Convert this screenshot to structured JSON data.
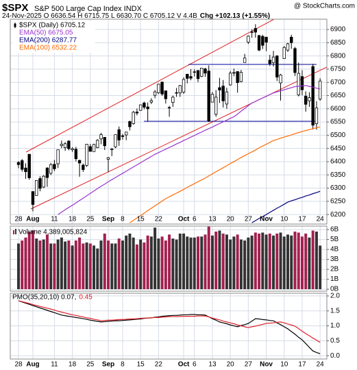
{
  "header": {
    "symbol": "$SPX",
    "title": "S&P 500 Large Cap Index INDX",
    "source": "@ StockCharts.com",
    "quote": "24-Nov-2025 O 6636.54 H 6715.75 L 6630.70 C 6705.12 V 4.4B",
    "change": "Chg +102.13 (+1.55%)"
  },
  "chart_data": [
    {
      "type": "candlestick",
      "grid": true,
      "grid_color": "#d5dbe6",
      "categories": [
        "28",
        null,
        null,
        null,
        "Aug",
        null,
        null,
        null,
        null,
        null,
        "11",
        null,
        null,
        null,
        null,
        "18",
        null,
        null,
        null,
        null,
        "25",
        null,
        null,
        null,
        null,
        "Sep",
        null,
        null,
        null,
        "8",
        null,
        null,
        null,
        null,
        "15",
        null,
        null,
        null,
        null,
        "22",
        null,
        null,
        null,
        null,
        null,
        null,
        "Oct",
        null,
        null,
        "6",
        null,
        null,
        null,
        null,
        "13",
        null,
        null,
        null,
        null,
        "20",
        null,
        null,
        null,
        null,
        "27",
        null,
        null,
        null,
        null,
        "Nov",
        null,
        null,
        null,
        null,
        "10",
        null,
        null,
        null,
        null,
        "17",
        null,
        null,
        null,
        null,
        "24"
      ],
      "ylim": [
        6164,
        6939
      ],
      "yticks": [
        6200,
        6250,
        6300,
        6350,
        6400,
        6450,
        6500,
        6550,
        6600,
        6650,
        6700,
        6750,
        6800,
        6850,
        6900
      ],
      "series": [
        {
          "name": "$SPX (Daily) 6705.12",
          "color": "#000000",
          "open": [
            6397,
            6404,
            6376,
            6428,
            6287,
            6272,
            6336,
            6304,
            6376,
            6356,
            6390,
            6392,
            6461,
            6453,
            6478,
            6445,
            6447,
            6405,
            6387,
            6386,
            6457,
            6438,
            6453,
            6486,
            6492,
            6409,
            6445,
            6456,
            6521,
            6498,
            6501,
            6552,
            6544,
            6588,
            6594,
            6622,
            6607,
            6625,
            6651,
            6661,
            6701,
            6668,
            6605,
            6624,
            6661,
            6660,
            6663,
            6731,
            6722,
            6740,
            6745,
            6723,
            6751,
            6743,
            6625,
            6579,
            6680,
            6686,
            6618,
            6690,
            6737,
            6741,
            6703,
            6775,
            6852,
            6889,
            6904,
            6877,
            6874,
            6871,
            6784,
            6774,
            6800,
            6698,
            6790,
            6822,
            6871,
            6828,
            6653,
            6722,
            6648,
            6630,
            6760,
            6544,
            6636.54
          ],
          "high": [
            6402,
            6410,
            6394,
            6428,
            6288,
            6330,
            6345,
            6349,
            6379,
            6395,
            6407,
            6446,
            6480,
            6474,
            6481,
            6455,
            6456,
            6407,
            6393,
            6467,
            6467,
            6468,
            6485,
            6509,
            6493,
            6418,
            6452,
            6502,
            6533,
            6505,
            6512,
            6555,
            6592,
            6601,
            6616,
            6627,
            6624,
            6640,
            6671,
            6695,
            6703,
            6668,
            6611,
            6650,
            6679,
            6690,
            6719,
            6731,
            6750,
            6749,
            6746,
            6754,
            6755,
            6764,
            6664,
            6671,
            6717,
            6709,
            6680,
            6743,
            6752,
            6742,
            6747,
            6808,
            6877,
            6901,
            6920,
            6880,
            6880,
            6872,
            6804,
            6819,
            6803,
            6732,
            6838,
            6850,
            6880,
            6834,
            6775,
            6746,
            6666,
            6663,
            6770,
            6629,
            6715.75
          ],
          "low": [
            6375,
            6362,
            6335,
            6332,
            6212,
            6272,
            6288,
            6300,
            6305,
            6349,
            6364,
            6376,
            6451,
            6441,
            6443,
            6437,
            6401,
            6343,
            6361,
            6380,
            6438,
            6438,
            6451,
            6466,
            6444,
            6361,
            6421,
            6451,
            6460,
            6483,
            6481,
            6518,
            6540,
            6575,
            6592,
            6598,
            6551,
            6618,
            6640,
            6656,
            6649,
            6620,
            6570,
            6607,
            6645,
            6645,
            6656,
            6696,
            6708,
            6722,
            6701,
            6720,
            6721,
            6550,
            6625,
            6570,
            6622,
            6605,
            6600,
            6688,
            6723,
            6661,
            6700,
            6775,
            6845,
            6869,
            6869,
            6818,
            6826,
            6818,
            6762,
            6760,
            6705,
            6631,
            6790,
            6815,
            6827,
            6724,
            6647,
            6651,
            6589,
            6607,
            6522,
            6521,
            6630.7
          ],
          "close": [
            6389,
            6371,
            6362,
            6339,
            6238,
            6329,
            6299,
            6345,
            6340,
            6389,
            6373,
            6445,
            6466,
            6468,
            6449,
            6449,
            6411,
            6395,
            6370,
            6466,
            6439,
            6465,
            6481,
            6502,
            6460,
            6415,
            6448,
            6502,
            6482,
            6495,
            6512,
            6532,
            6587,
            6584,
            6615,
            6606,
            6600,
            6631,
            6664,
            6693,
            6656,
            6638,
            6605,
            6644,
            6661,
            6688,
            6711,
            6715,
            6716,
            6740,
            6714,
            6754,
            6735,
            6553,
            6655,
            6644,
            6671,
            6630,
            6664,
            6735,
            6736,
            6699,
            6738,
            6792,
            6875,
            6891,
            6890,
            6822,
            6840,
            6852,
            6771,
            6796,
            6720,
            6728,
            6832,
            6846,
            6850,
            6737,
            6734,
            6672,
            6617,
            6642,
            6538,
            6603,
            6705.12
          ]
        },
        {
          "name": "EMA(50) 6675.05",
          "color": "#9933cc",
          "values": [
            null,
            null,
            null,
            null,
            null,
            null,
            null,
            null,
            null,
            null,
            null,
            6200,
            6209,
            6218,
            6227,
            6235,
            6244,
            6253,
            6262,
            6271,
            6280,
            6289,
            6298,
            6307,
            6315,
            6324,
            6332,
            6340,
            6348,
            6356,
            6364,
            6372,
            6380,
            6388,
            6396,
            6404,
            6412,
            6420,
            6428,
            6434,
            6441,
            6447,
            6454,
            6460,
            6467,
            6473,
            6480,
            6486,
            6493,
            6499,
            6506,
            6512,
            6519,
            6525,
            6531,
            6538,
            6544,
            6551,
            6557,
            6564,
            6570,
            6580,
            6591,
            6601,
            6612,
            6622,
            6628,
            6635,
            6641,
            6647,
            6654,
            6660,
            6664,
            6668,
            6672,
            6676,
            6680,
            6684,
            6685,
            6687,
            6688,
            6685,
            6682,
            6678,
            6675
          ]
        },
        {
          "name": "EMA(200) 6287.77",
          "color": "#000080",
          "values": [
            null,
            null,
            null,
            null,
            null,
            null,
            null,
            null,
            null,
            null,
            null,
            null,
            null,
            null,
            null,
            null,
            null,
            null,
            null,
            null,
            null,
            null,
            null,
            null,
            null,
            null,
            null,
            null,
            null,
            null,
            null,
            null,
            null,
            null,
            null,
            null,
            null,
            null,
            null,
            null,
            null,
            null,
            null,
            null,
            null,
            null,
            null,
            null,
            null,
            null,
            null,
            null,
            null,
            null,
            null,
            null,
            null,
            null,
            null,
            null,
            null,
            null,
            null,
            null,
            null,
            6169,
            6177,
            6185,
            6192,
            6200,
            6208,
            6216,
            6224,
            6231,
            6239,
            6247,
            6252,
            6256,
            6261,
            6265,
            6270,
            6274,
            6279,
            6283,
            6288
          ]
        },
        {
          "name": "EMA(100) 6532.22",
          "color": "#ff6a00",
          "values": [
            null,
            null,
            null,
            null,
            null,
            null,
            null,
            null,
            null,
            null,
            null,
            null,
            null,
            null,
            null,
            null,
            null,
            null,
            null,
            null,
            null,
            null,
            null,
            null,
            null,
            null,
            null,
            null,
            null,
            null,
            null,
            6169,
            6178,
            6187,
            6196,
            6205,
            6215,
            6224,
            6233,
            6242,
            6251,
            6260,
            6267,
            6274,
            6281,
            6288,
            6295,
            6303,
            6310,
            6317,
            6324,
            6331,
            6338,
            6346,
            6354,
            6362,
            6369,
            6377,
            6385,
            6393,
            6400,
            6408,
            6416,
            6423,
            6430,
            6437,
            6444,
            6452,
            6459,
            6466,
            6473,
            6480,
            6484,
            6489,
            6493,
            6497,
            6501,
            6506,
            6510,
            6514,
            6518,
            6521,
            6525,
            6528,
            6532
          ]
        }
      ]
    },
    {
      "type": "bar",
      "title": "Volume 4,389,005,824",
      "grid": true,
      "grid_color": "#d5dbe6",
      "up_color": "#333333",
      "down_color": "#a3204f",
      "ylim": [
        -0.2,
        6.35
      ],
      "yticks": [
        {
          "value": 0,
          "label": "0B"
        },
        {
          "value": 1,
          "label": "1B"
        },
        {
          "value": 2,
          "label": "2B"
        },
        {
          "value": 3,
          "label": "3B"
        },
        {
          "value": 4,
          "label": "4B"
        },
        {
          "value": 5,
          "label": "5B"
        },
        {
          "value": 6,
          "label": "6B"
        }
      ],
      "values": [
        4.6,
        4.9,
        5.2,
        5.8,
        5.9,
        5.1,
        4.9,
        5.0,
        5.5,
        4.6,
        4.6,
        5.0,
        5.2,
        4.8,
        4.9,
        4.4,
        4.9,
        5.2,
        4.6,
        4.7,
        4.6,
        4.4,
        4.1,
        4.9,
        5.6,
        4.9,
        4.6,
        4.6,
        5.1,
        4.9,
        5.4,
        5.6,
        5.2,
        4.5,
        5.0,
        4.7,
        5.4,
        5.3,
        6.2,
        5.1,
        5.3,
        4.9,
        5.5,
        5.1,
        5.0,
        5.6,
        5.6,
        5.3,
        5.2,
        5.2,
        5.3,
        5.3,
        5.5,
        6.3,
        5.4,
        5.8,
        5.9,
        5.6,
        5.5,
        5.0,
        5.3,
        5.5,
        5.0,
        4.9,
        5.2,
        5.4,
        5.7,
        5.6,
        5.7,
        5.5,
        5.6,
        5.4,
        5.6,
        5.7,
        5.3,
        5.5,
        5.4,
        5.8,
        5.7,
        5.3,
        5.6,
        5.2,
        5.9,
        5.8,
        4.39
      ]
    },
    {
      "type": "line",
      "grid": true,
      "grid_color": "#d5dbe6",
      "ylim": [
        -0.11,
        2.09
      ],
      "yticks": [
        {
          "value": 0,
          "label": "0.0"
        },
        0.5,
        {
          "value": 1,
          "label": "1.0"
        },
        1.5,
        {
          "value": 2,
          "label": "2.0"
        }
      ],
      "series": [
        {
          "name": "PMO(35,20,10) 0.07,",
          "color": "#000000",
          "values": [
            1.84,
            1.8,
            1.76,
            1.72,
            1.68,
            1.64,
            1.6,
            1.56,
            1.52,
            1.48,
            1.44,
            1.4,
            1.36,
            1.34,
            1.32,
            1.3,
            1.28,
            1.26,
            1.24,
            1.22,
            1.19,
            1.17,
            1.15,
            1.13,
            1.14,
            1.15,
            1.16,
            1.17,
            1.17,
            1.18,
            1.19,
            1.2,
            1.21,
            1.22,
            1.23,
            1.25,
            1.26,
            1.27,
            1.29,
            1.3,
            1.32,
            1.33,
            1.34,
            1.35,
            1.35,
            1.36,
            1.37,
            1.37,
            1.38,
            1.38,
            1.37,
            1.37,
            1.36,
            1.3,
            1.24,
            1.19,
            1.13,
            1.1,
            1.07,
            1.03,
            1.0,
            0.97,
            1.01,
            1.04,
            1.08,
            1.16,
            1.24,
            1.23,
            1.21,
            1.2,
            1.18,
            1.17,
            1.1,
            1.04,
            0.97,
            0.9,
            0.81,
            0.72,
            0.62,
            0.53,
            0.41,
            0.28,
            0.16,
            0.11,
            0.07
          ]
        },
        {
          "name": "0.45",
          "color": "#e0202a",
          "values": [
            1.84,
            1.81,
            1.78,
            1.75,
            1.71,
            1.68,
            1.65,
            1.62,
            1.59,
            1.56,
            1.53,
            1.49,
            1.46,
            1.43,
            1.4,
            1.37,
            1.35,
            1.32,
            1.3,
            1.27,
            1.25,
            1.22,
            1.2,
            1.17,
            1.18,
            1.19,
            1.19,
            1.2,
            1.21,
            1.21,
            1.22,
            1.23,
            1.23,
            1.24,
            1.25,
            1.26,
            1.26,
            1.27,
            1.28,
            1.28,
            1.29,
            1.3,
            1.31,
            1.31,
            1.31,
            1.31,
            1.32,
            1.32,
            1.32,
            1.32,
            1.33,
            1.33,
            1.33,
            1.3,
            1.26,
            1.23,
            1.2,
            1.16,
            1.13,
            1.1,
            1.07,
            1.03,
            1.0,
            0.97,
            0.94,
            0.97,
            0.99,
            1.02,
            1.05,
            1.08,
            1.09,
            1.1,
            1.12,
            1.13,
            1.1,
            1.06,
            1.03,
            0.99,
            0.91,
            0.82,
            0.74,
            0.67,
            0.59,
            0.52,
            0.45
          ]
        }
      ]
    }
  ]
}
